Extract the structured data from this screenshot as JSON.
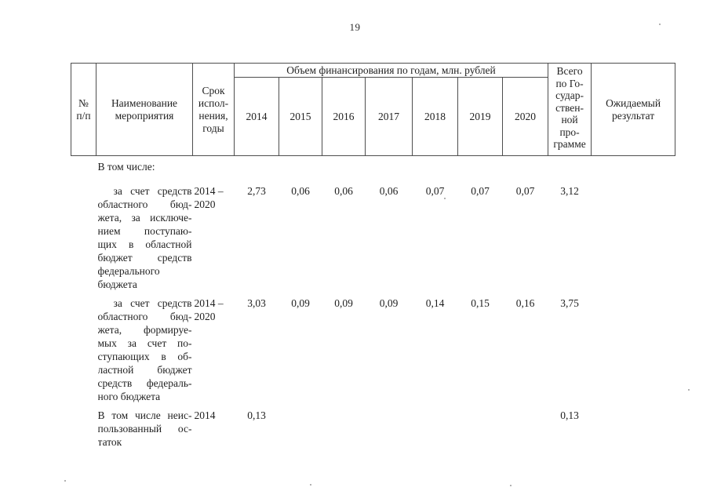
{
  "page_number": "19",
  "table": {
    "header": {
      "num_lines": [
        "№",
        "п/п"
      ],
      "name_lines": [
        "Наименование",
        "мероприятия"
      ],
      "term_lines": [
        "Срок",
        "испол-",
        "нения,",
        "годы"
      ],
      "finance": "Объем финансирования по годам, млн. рублей",
      "years": [
        "2014",
        "2015",
        "2016",
        "2017",
        "2018",
        "2019",
        "2020"
      ],
      "total_lines": [
        "Всего",
        "по Го-",
        "судар-",
        "ствен-",
        "ной",
        "про-",
        "грамме"
      ],
      "result_lines": [
        "Ожидаемый",
        "результат"
      ]
    },
    "rows": [
      {
        "kind": "subhead",
        "indent_first": false,
        "name_lines": [
          "В том числе:"
        ],
        "term_lines": [],
        "values": [
          "",
          "",
          "",
          "",
          "",
          "",
          ""
        ],
        "total": ""
      },
      {
        "kind": "item",
        "indent_first": true,
        "name_lines": [
          "за счет средств",
          "областного бюд-",
          "жета, за исключе-",
          "нием поступаю-",
          "щих в областной",
          "бюджет средств",
          "федерального",
          "бюджета"
        ],
        "term_lines": [
          "2014 –",
          "2020"
        ],
        "values": [
          "2,73",
          "0,06",
          "0,06",
          "0,06",
          "0,07",
          "0,07",
          "0,07"
        ],
        "total": "3,12"
      },
      {
        "kind": "item",
        "indent_first": true,
        "name_lines": [
          "за счет средств",
          "областного бюд-",
          "жета, формируе-",
          "мых за счет по-",
          "ступающих в об-",
          "ластной бюджет",
          "средств федераль-",
          "ного бюджета"
        ],
        "term_lines": [
          "2014 –",
          "2020"
        ],
        "values": [
          "3,03",
          "0,09",
          "0,09",
          "0,09",
          "0,14",
          "0,15",
          "0,16"
        ],
        "total": "3,75"
      },
      {
        "kind": "item",
        "indent_first": false,
        "name_lines": [
          "В том числе неис-",
          "пользованный ос-",
          "таток"
        ],
        "term_lines": [
          "2014"
        ],
        "values": [
          "0,13",
          "",
          "",
          "",
          "",
          "",
          ""
        ],
        "total": "0,13"
      }
    ]
  }
}
